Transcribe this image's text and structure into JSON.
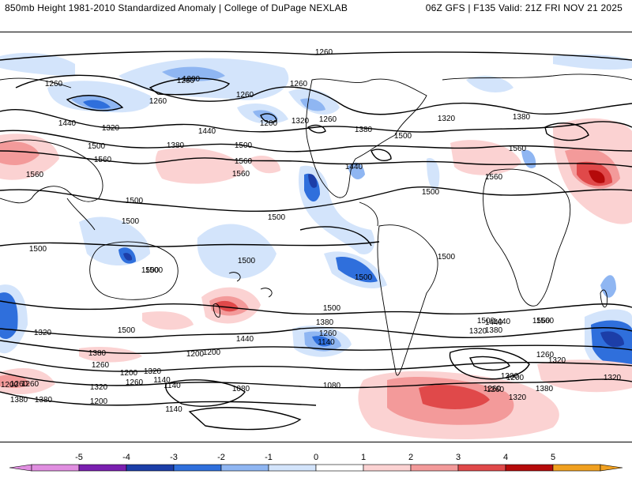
{
  "header": {
    "left": "850mb Height 1981-2010 Standardized Anomaly | College of DuPage NEXLAB",
    "right": "06Z GFS | F135 Valid: 21Z FRI NOV 21 2025"
  },
  "map": {
    "contour_labels": [
      "1260",
      "1260",
      "1200",
      "1260",
      "1260",
      "1260",
      "1200",
      "1320",
      "1260",
      "1260",
      "1440",
      "1320",
      "1380",
      "1320",
      "1380",
      "1440",
      "1500",
      "1380",
      "1500",
      "1560",
      "1560",
      "1560",
      "1560",
      "1440",
      "1500",
      "1560",
      "1500",
      "1560",
      "1500",
      "1500",
      "1500",
      "1500",
      "1500",
      "1500",
      "1500",
      "1500",
      "1500",
      "1440",
      "1320",
      "1380",
      "1260",
      "1200",
      "1260",
      "1380",
      "1140",
      "1200",
      "1320",
      "1260",
      "1200",
      "1140",
      "1080",
      "1140",
      "1260",
      "1200",
      "1080",
      "1440",
      "1320",
      "1380",
      "1260",
      "1140",
      "1380",
      "1440",
      "1320",
      "1200",
      "1260",
      "1380",
      "1500",
      "1560",
      "1260",
      "1200",
      "1320",
      "1320",
      "1260",
      "1200",
      "1380",
      "1320",
      "1500",
      "1500",
      "1560"
    ]
  },
  "colorbar": {
    "ticks": [
      "-5",
      "-4",
      "-3",
      "-2",
      "-1",
      "0",
      "1",
      "2",
      "3",
      "4",
      "5"
    ],
    "colors": [
      "#e08ee0",
      "#7a1fb0",
      "#1c3ea8",
      "#2f6fdc",
      "#8fb6f2",
      "#d3e4fb",
      "#ffffff",
      "#fbd2d2",
      "#f39a9a",
      "#e0494a",
      "#b50a0a",
      "#f0a020"
    ]
  }
}
